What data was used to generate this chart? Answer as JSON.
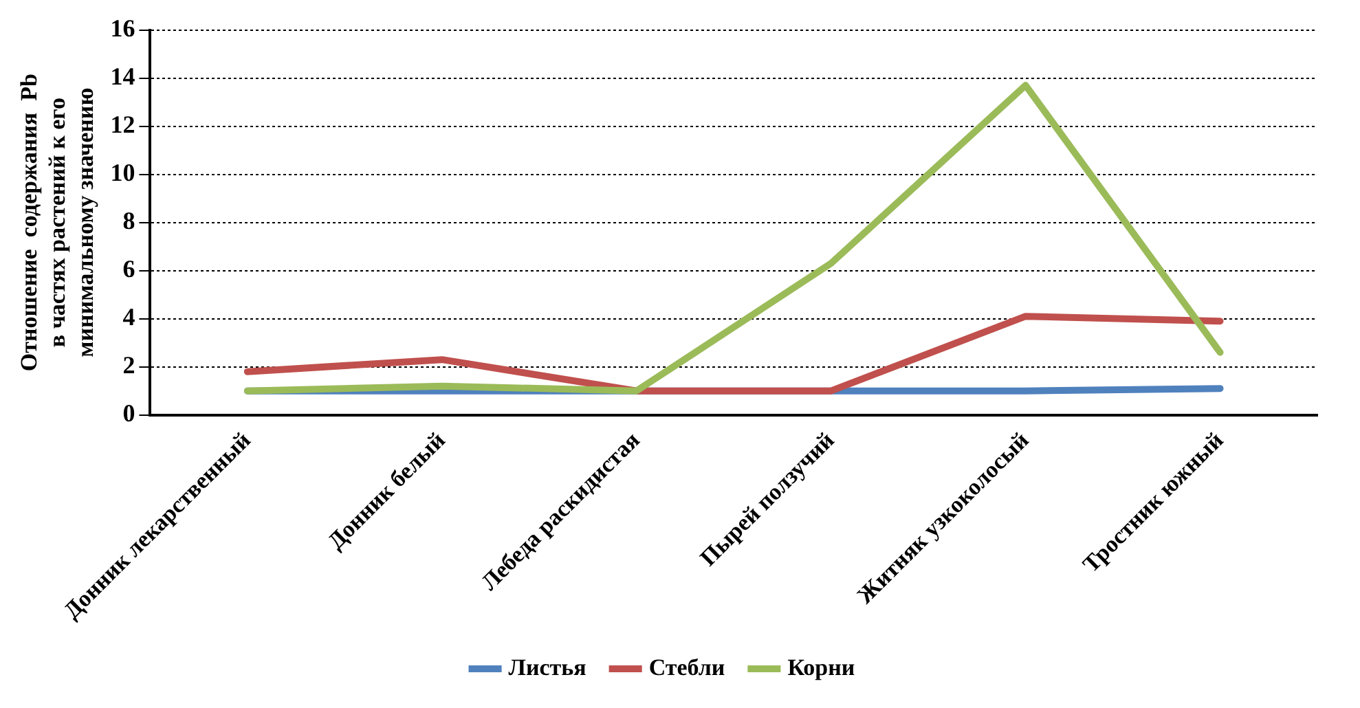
{
  "chart_data": {
    "type": "line",
    "ylabel": "Отношение  содержания  Pb\nв частях растений к его\nминимальному значению",
    "categories": [
      "Донник лекарственный",
      "Донник белый",
      "Лебеда раскидистая",
      "Пырей ползучий",
      "Житняк узкоколосый",
      "Тростник южный"
    ],
    "series": [
      {
        "name": "Листья",
        "color": "#4f81bd",
        "values": [
          1.0,
          1.0,
          1.0,
          1.0,
          1.0,
          1.1
        ]
      },
      {
        "name": "Стебли",
        "color": "#c0504d",
        "values": [
          1.8,
          2.3,
          1.0,
          1.0,
          4.1,
          3.9
        ]
      },
      {
        "name": "Корни",
        "color": "#9bbb59",
        "values": [
          1.0,
          1.2,
          1.0,
          6.3,
          13.7,
          2.6
        ]
      }
    ],
    "ylim": [
      0,
      16
    ],
    "yticks": [
      0,
      2,
      4,
      6,
      8,
      10,
      12,
      14,
      16
    ],
    "grid": "y",
    "legend": "bottom",
    "marker": "none",
    "line_style": "solid"
  }
}
